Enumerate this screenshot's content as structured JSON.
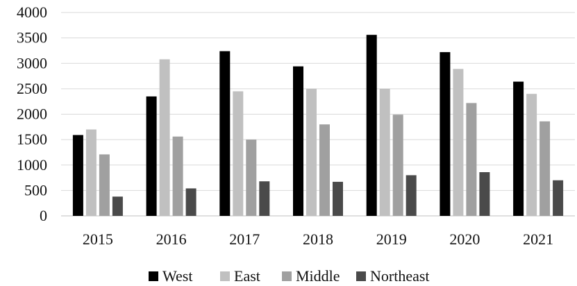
{
  "chart_data": {
    "type": "bar",
    "title": "",
    "xlabel": "",
    "ylabel": "",
    "categories": [
      "2015",
      "2016",
      "2017",
      "2018",
      "2019",
      "2020",
      "2021"
    ],
    "series": [
      {
        "name": "West",
        "color": "#000000",
        "values": [
          1590,
          2350,
          3240,
          2940,
          3560,
          3220,
          2640
        ]
      },
      {
        "name": "East",
        "color": "#c0c0c0",
        "values": [
          1700,
          3080,
          2450,
          2500,
          2500,
          2890,
          2400
        ]
      },
      {
        "name": "Middle",
        "color": "#a0a0a0",
        "values": [
          1210,
          1560,
          1500,
          1800,
          1990,
          2220,
          1860
        ]
      },
      {
        "name": "Northeast",
        "color": "#4a4a4a",
        "values": [
          380,
          540,
          680,
          670,
          800,
          860,
          700
        ]
      }
    ],
    "ylim": [
      0,
      4000
    ],
    "yticks": [
      "0",
      "500",
      "1000",
      "1500",
      "2000",
      "2500",
      "3000",
      "3500",
      "4000"
    ],
    "grid": true,
    "legend_position": "bottom"
  }
}
